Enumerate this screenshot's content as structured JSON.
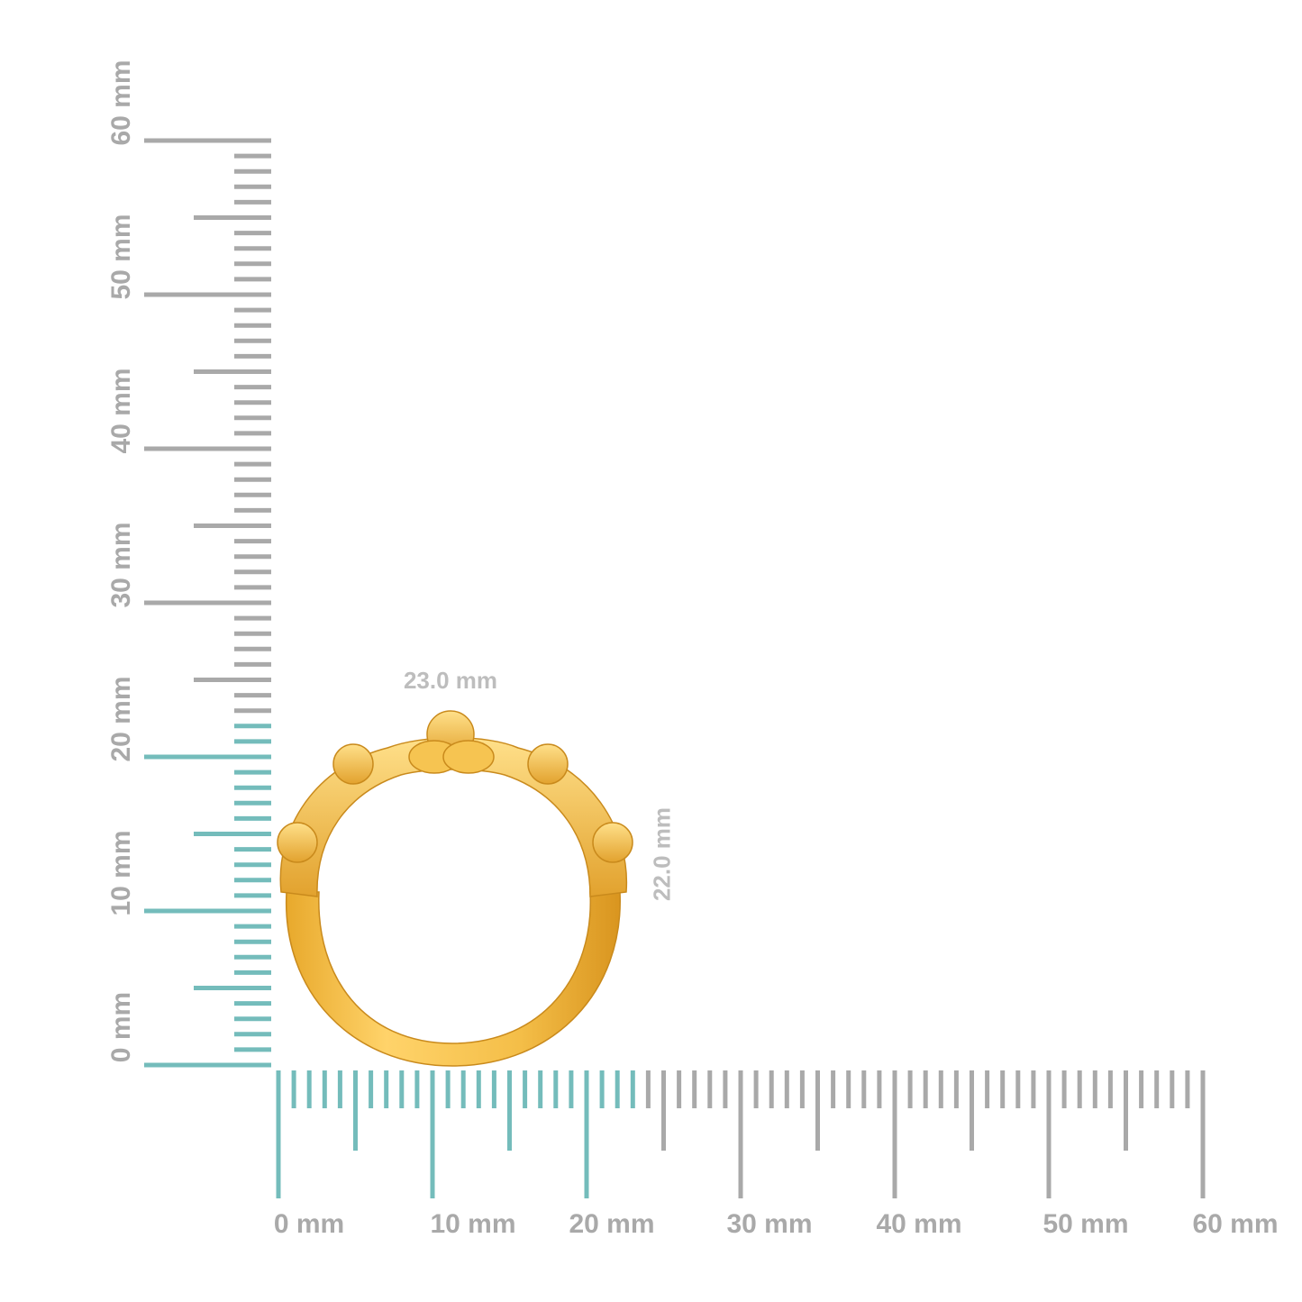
{
  "colors": {
    "highlight": "#74bcbb",
    "ruler": "#a9a9a9",
    "gold": "#f0b53a",
    "dimension_text": "#bdbdbd"
  },
  "horizontal_ruler": {
    "unit": "mm",
    "range": [
      0,
      60
    ],
    "highlighted_to": 23,
    "labels": [
      "0 mm",
      "10 mm",
      "20 mm",
      "30 mm",
      "40 mm",
      "50 mm",
      "60 mm"
    ]
  },
  "vertical_ruler": {
    "unit": "mm",
    "range": [
      0,
      60
    ],
    "highlighted_to": 22,
    "labels": [
      "0 mm",
      "10 mm",
      "20 mm",
      "30 mm",
      "40 mm",
      "50 mm",
      "60 mm"
    ]
  },
  "dimensions": {
    "width": "23.0 mm",
    "height": "22.0 mm"
  },
  "product": "ring"
}
